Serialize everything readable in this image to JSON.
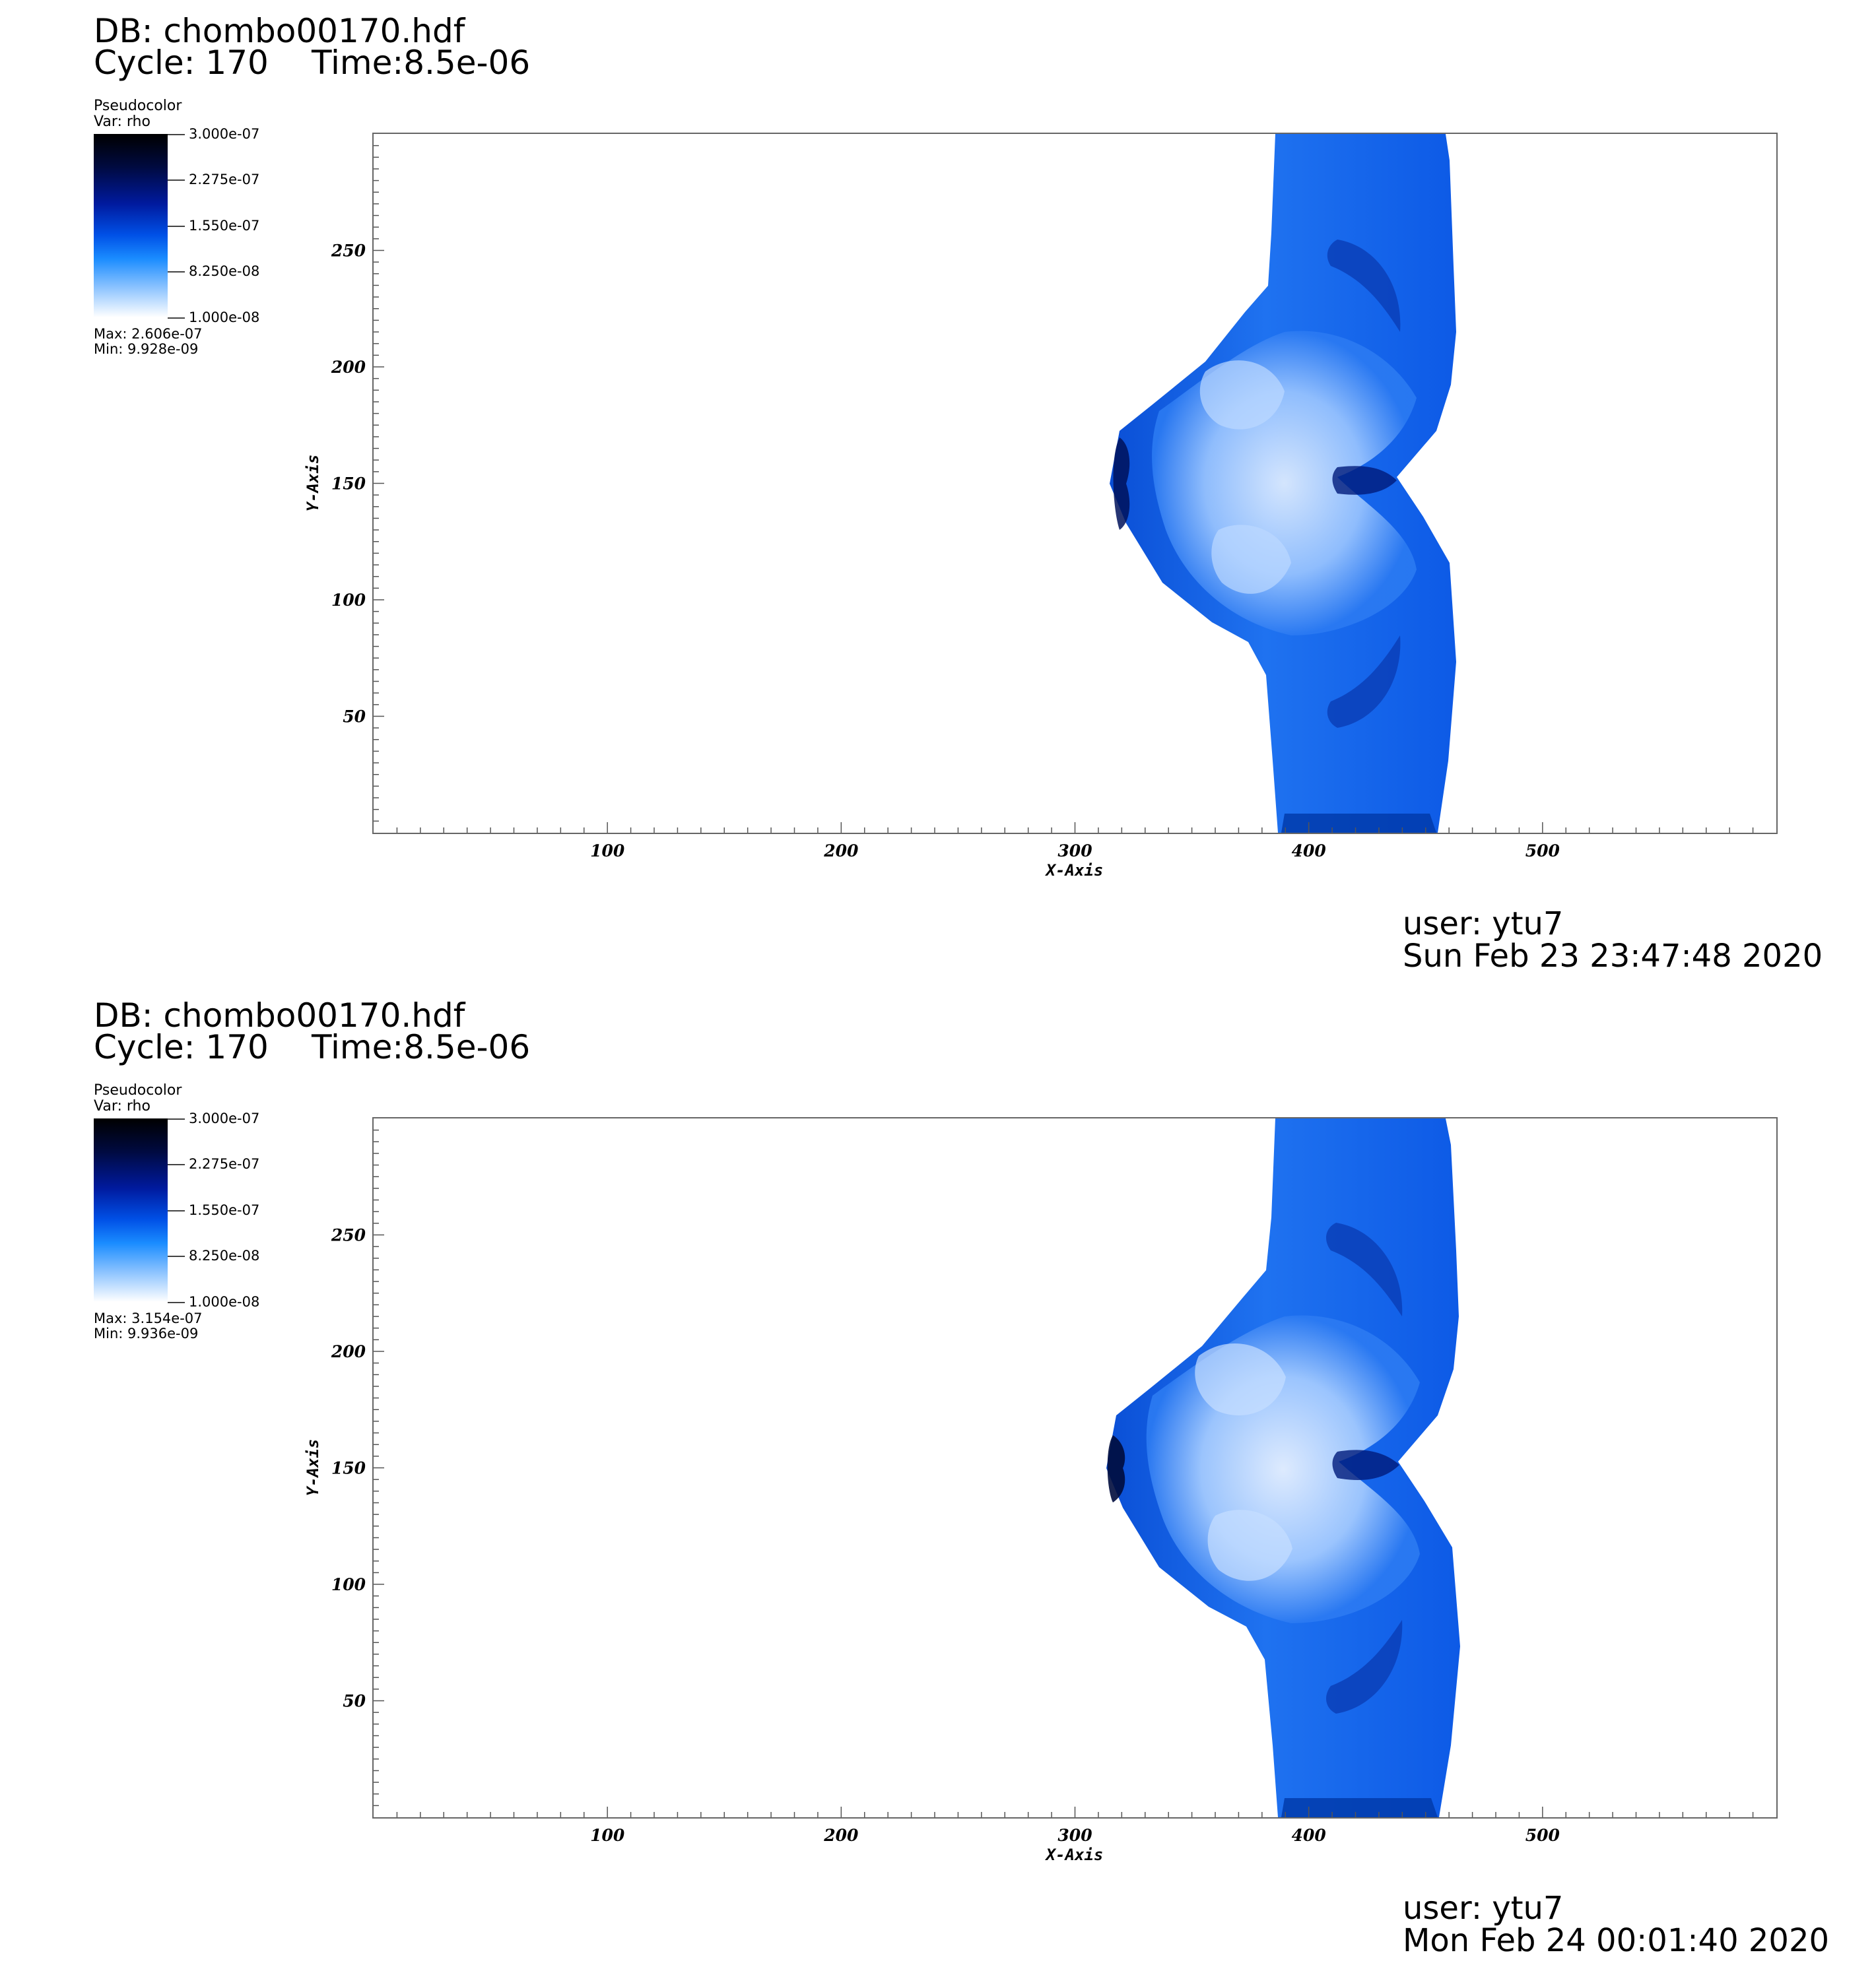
{
  "chart_data": [
    {
      "type": "heatmap",
      "db_title": "DB: chombo00170.hdf",
      "cycle_label": "Cycle: 170",
      "time_label": "Time:8.5e-06",
      "legend": {
        "plot_type": "Pseudocolor",
        "var_label": "Var: rho",
        "ticks": [
          "3.000e-07",
          "2.275e-07",
          "1.550e-07",
          "8.250e-08",
          "1.000e-08"
        ],
        "max_label": "Max:  2.606e-07",
        "min_label": "Min:  9.928e-09"
      },
      "colorbar_range": [
        1e-08,
        3e-07
      ],
      "xlabel": "X-Axis",
      "ylabel": "Y-Axis",
      "xlim": [
        0,
        600
      ],
      "ylim": [
        0,
        300
      ],
      "xticks": [
        "100",
        "200",
        "300",
        "400",
        "500"
      ],
      "yticks": [
        "50",
        "100",
        "150",
        "200",
        "250"
      ],
      "xtick_values": [
        100,
        200,
        300,
        400,
        500
      ],
      "ytick_values": [
        50,
        100,
        150,
        200,
        250
      ],
      "user_label": "user: ytu7",
      "date_label": "Sun Feb 23 23:47:48 2020"
    },
    {
      "type": "heatmap",
      "db_title": "DB: chombo00170.hdf",
      "cycle_label": "Cycle: 170",
      "time_label": "Time:8.5e-06",
      "legend": {
        "plot_type": "Pseudocolor",
        "var_label": "Var: rho",
        "ticks": [
          "3.000e-07",
          "2.275e-07",
          "1.550e-07",
          "8.250e-08",
          "1.000e-08"
        ],
        "max_label": "Max:  3.154e-07",
        "min_label": "Min:  9.936e-09"
      },
      "colorbar_range": [
        1e-08,
        3e-07
      ],
      "xlabel": "X-Axis",
      "ylabel": "Y-Axis",
      "xlim": [
        0,
        600
      ],
      "ylim": [
        0,
        300
      ],
      "xticks": [
        "100",
        "200",
        "300",
        "400",
        "500"
      ],
      "yticks": [
        "50",
        "100",
        "150",
        "200",
        "250"
      ],
      "xtick_values": [
        100,
        200,
        300,
        400,
        500
      ],
      "ytick_values": [
        50,
        100,
        150,
        200,
        250
      ],
      "user_label": "user: ytu7",
      "date_label": "Mon Feb 24 00:01:40 2020"
    }
  ],
  "colors": {
    "bar_light": "#ffffff",
    "bar_mid": "#0050e6",
    "bar_dark": "#000000",
    "flow_blue": "#0b5ee8",
    "flow_light": "#cfe4ff",
    "flow_dark": "#00155e"
  }
}
